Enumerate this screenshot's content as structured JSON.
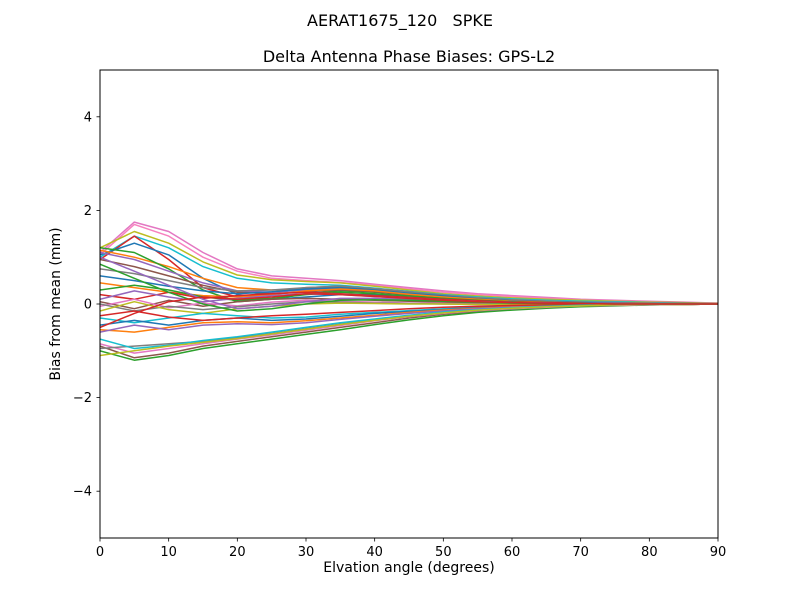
{
  "figure": {
    "background": "#ffffff"
  },
  "chart_data": {
    "type": "line",
    "suptitle": "AERAT1675_120   SPKE",
    "title": "Delta Antenna Phase Biases: GPS-L2",
    "xlabel": "Elvation angle (degrees)",
    "ylabel": "Bias from mean (mm)",
    "xlim": [
      0,
      90
    ],
    "ylim": [
      -5,
      5
    ],
    "xticks": [
      0,
      10,
      20,
      30,
      40,
      50,
      60,
      70,
      80,
      90
    ],
    "yticks": [
      -4,
      -2,
      0,
      2,
      4
    ],
    "grid": false,
    "legend": "none",
    "x": [
      0,
      5,
      10,
      15,
      20,
      25,
      30,
      35,
      40,
      45,
      50,
      55,
      60,
      65,
      70,
      75,
      80,
      85,
      90
    ],
    "series": [
      {
        "name": "line-01",
        "color": "#e377c2",
        "values": [
          1.1,
          1.75,
          1.55,
          1.1,
          0.75,
          0.6,
          0.55,
          0.5,
          0.42,
          0.35,
          0.28,
          0.22,
          0.18,
          0.14,
          0.1,
          0.08,
          0.06,
          0.04,
          0.02
        ]
      },
      {
        "name": "line-02",
        "color": "#f781bf",
        "values": [
          1.05,
          1.7,
          1.45,
          1.0,
          0.7,
          0.55,
          0.5,
          0.46,
          0.4,
          0.32,
          0.25,
          0.2,
          0.16,
          0.12,
          0.09,
          0.07,
          0.05,
          0.03,
          0.02
        ]
      },
      {
        "name": "line-03",
        "color": "#bcbd22",
        "values": [
          1.2,
          1.55,
          1.3,
          0.9,
          0.62,
          0.52,
          0.48,
          0.45,
          0.38,
          0.3,
          0.22,
          0.17,
          0.13,
          0.1,
          0.08,
          0.06,
          0.04,
          0.03,
          0.01
        ]
      },
      {
        "name": "line-04",
        "color": "#17becf",
        "values": [
          1.0,
          1.45,
          1.2,
          0.8,
          0.55,
          0.45,
          0.42,
          0.4,
          0.34,
          0.27,
          0.2,
          0.15,
          0.11,
          0.08,
          0.06,
          0.05,
          0.03,
          0.02,
          0.01
        ]
      },
      {
        "name": "line-05",
        "color": "#d62728",
        "values": [
          0.95,
          1.45,
          0.95,
          0.35,
          0.15,
          0.25,
          0.35,
          0.38,
          0.32,
          0.25,
          0.18,
          0.12,
          0.08,
          0.05,
          0.03,
          0.02,
          0.01,
          0.01,
          0.0
        ]
      },
      {
        "name": "line-06",
        "color": "#1f77b4",
        "values": [
          1.05,
          1.3,
          1.05,
          0.55,
          0.2,
          0.1,
          0.15,
          0.2,
          0.2,
          0.17,
          0.13,
          0.1,
          0.07,
          0.05,
          0.03,
          0.02,
          0.01,
          0.01,
          0.0
        ]
      },
      {
        "name": "line-07",
        "color": "#ff7f0e",
        "values": [
          1.15,
          1.0,
          0.8,
          0.55,
          0.35,
          0.3,
          0.32,
          0.35,
          0.3,
          0.24,
          0.18,
          0.13,
          0.09,
          0.06,
          0.04,
          0.03,
          0.02,
          0.01,
          0.01
        ]
      },
      {
        "name": "line-08",
        "color": "#2ca02c",
        "values": [
          1.2,
          1.1,
          0.75,
          0.3,
          0.05,
          0.1,
          0.22,
          0.28,
          0.25,
          0.2,
          0.14,
          0.09,
          0.06,
          0.04,
          0.02,
          0.01,
          0.01,
          0.0,
          0.0
        ]
      },
      {
        "name": "line-09",
        "color": "#9467bd",
        "values": [
          1.1,
          0.95,
          0.7,
          0.45,
          0.28,
          0.25,
          0.3,
          0.33,
          0.28,
          0.22,
          0.16,
          0.11,
          0.08,
          0.05,
          0.03,
          0.02,
          0.01,
          0.01,
          0.0
        ]
      },
      {
        "name": "line-10",
        "color": "#8c564b",
        "values": [
          0.95,
          0.8,
          0.6,
          0.4,
          0.25,
          0.22,
          0.26,
          0.3,
          0.26,
          0.2,
          0.15,
          0.1,
          0.07,
          0.05,
          0.03,
          0.02,
          0.01,
          0.01,
          0.0
        ]
      },
      {
        "name": "line-11",
        "color": "#7f7f7f",
        "values": [
          0.75,
          0.65,
          0.5,
          0.35,
          0.28,
          0.3,
          0.35,
          0.38,
          0.33,
          0.26,
          0.19,
          0.13,
          0.09,
          0.06,
          0.04,
          0.03,
          0.02,
          0.01,
          0.0
        ]
      },
      {
        "name": "line-12",
        "color": "#1f77b4",
        "values": [
          0.6,
          0.5,
          0.38,
          0.28,
          0.22,
          0.26,
          0.32,
          0.35,
          0.3,
          0.23,
          0.17,
          0.11,
          0.07,
          0.05,
          0.03,
          0.02,
          0.01,
          0.0,
          0.0
        ]
      },
      {
        "name": "line-13",
        "color": "#ff7f0e",
        "values": [
          0.45,
          0.35,
          0.25,
          0.18,
          0.15,
          0.2,
          0.28,
          0.32,
          0.28,
          0.21,
          0.15,
          0.1,
          0.06,
          0.04,
          0.02,
          0.01,
          0.01,
          0.0,
          0.0
        ]
      },
      {
        "name": "line-14",
        "color": "#2ca02c",
        "values": [
          0.3,
          0.4,
          0.3,
          0.15,
          0.08,
          0.12,
          0.2,
          0.25,
          0.22,
          0.17,
          0.12,
          0.08,
          0.05,
          0.03,
          0.02,
          0.01,
          0.0,
          0.0,
          0.0
        ]
      },
      {
        "name": "line-15",
        "color": "#d62728",
        "values": [
          0.2,
          0.1,
          0.25,
          0.12,
          0.18,
          0.22,
          0.25,
          0.22,
          0.18,
          0.14,
          0.1,
          0.07,
          0.04,
          0.03,
          0.02,
          0.01,
          0.0,
          0.0,
          0.0
        ]
      },
      {
        "name": "line-16",
        "color": "#9467bd",
        "values": [
          0.1,
          0.28,
          0.15,
          0.05,
          0.12,
          0.18,
          0.22,
          0.2,
          0.16,
          0.12,
          0.08,
          0.05,
          0.03,
          0.02,
          0.01,
          0.01,
          0.0,
          0.0,
          0.0
        ]
      },
      {
        "name": "line-17",
        "color": "#8c564b",
        "values": [
          0.05,
          -0.1,
          0.08,
          -0.05,
          0.05,
          0.1,
          0.12,
          0.1,
          0.08,
          0.06,
          0.04,
          0.02,
          0.01,
          0.01,
          0.0,
          0.0,
          0.0,
          0.0,
          0.0
        ]
      },
      {
        "name": "line-18",
        "color": "#e377c2",
        "values": [
          -0.05,
          0.1,
          -0.08,
          0.02,
          -0.04,
          0.04,
          0.08,
          0.06,
          0.04,
          0.02,
          0.01,
          0.0,
          0.0,
          0.0,
          0.0,
          0.0,
          0.0,
          0.0,
          0.0
        ]
      },
      {
        "name": "line-19",
        "color": "#7f7f7f",
        "values": [
          0.0,
          -0.15,
          -0.05,
          -0.12,
          -0.06,
          0.0,
          0.05,
          0.04,
          0.02,
          0.01,
          0.0,
          0.0,
          0.0,
          0.0,
          0.0,
          0.0,
          0.0,
          0.0,
          0.0
        ]
      },
      {
        "name": "line-20",
        "color": "#bcbd22",
        "values": [
          -0.15,
          0.05,
          -0.12,
          -0.2,
          -0.1,
          -0.05,
          0.0,
          0.02,
          0.01,
          0.0,
          0.0,
          -0.01,
          -0.01,
          0.0,
          0.0,
          0.0,
          0.0,
          0.0,
          0.0
        ]
      },
      {
        "name": "line-21",
        "color": "#17becf",
        "values": [
          -0.3,
          -0.4,
          -0.3,
          -0.2,
          -0.25,
          -0.3,
          -0.28,
          -0.22,
          -0.18,
          -0.14,
          -0.1,
          -0.07,
          -0.05,
          -0.03,
          -0.02,
          -0.01,
          -0.01,
          0.0,
          0.0
        ]
      },
      {
        "name": "line-22",
        "color": "#1f77b4",
        "values": [
          -0.45,
          -0.35,
          -0.45,
          -0.35,
          -0.3,
          -0.35,
          -0.32,
          -0.26,
          -0.2,
          -0.16,
          -0.12,
          -0.08,
          -0.06,
          -0.04,
          -0.02,
          -0.01,
          -0.01,
          0.0,
          0.0
        ]
      },
      {
        "name": "line-23",
        "color": "#ff7f0e",
        "values": [
          -0.55,
          -0.6,
          -0.5,
          -0.4,
          -0.38,
          -0.4,
          -0.36,
          -0.3,
          -0.24,
          -0.18,
          -0.13,
          -0.09,
          -0.06,
          -0.04,
          -0.03,
          -0.02,
          -0.01,
          -0.01,
          0.0
        ]
      },
      {
        "name": "line-24",
        "color": "#9467bd",
        "values": [
          -0.6,
          -0.45,
          -0.55,
          -0.45,
          -0.42,
          -0.44,
          -0.4,
          -0.33,
          -0.26,
          -0.2,
          -0.15,
          -0.1,
          -0.07,
          -0.05,
          -0.03,
          -0.02,
          -0.01,
          -0.01,
          0.0
        ]
      },
      {
        "name": "line-25",
        "color": "#d62728",
        "values": [
          -0.25,
          -0.15,
          -0.28,
          -0.35,
          -0.3,
          -0.25,
          -0.22,
          -0.18,
          -0.14,
          -0.1,
          -0.07,
          -0.05,
          -0.03,
          -0.02,
          -0.01,
          -0.01,
          0.0,
          0.0,
          0.0
        ]
      },
      {
        "name": "line-26",
        "color": "#8c564b",
        "values": [
          -0.9,
          -1.15,
          -1.05,
          -0.9,
          -0.8,
          -0.7,
          -0.6,
          -0.5,
          -0.4,
          -0.3,
          -0.22,
          -0.16,
          -0.11,
          -0.08,
          -0.05,
          -0.03,
          -0.02,
          -0.01,
          0.0
        ]
      },
      {
        "name": "line-27",
        "color": "#2ca02c",
        "values": [
          -1.0,
          -1.2,
          -1.1,
          -0.95,
          -0.85,
          -0.75,
          -0.65,
          -0.55,
          -0.44,
          -0.34,
          -0.25,
          -0.18,
          -0.13,
          -0.09,
          -0.06,
          -0.04,
          -0.02,
          -0.01,
          0.0
        ]
      },
      {
        "name": "line-28",
        "color": "#e377c2",
        "values": [
          -0.85,
          -1.05,
          -0.95,
          -0.85,
          -0.75,
          -0.66,
          -0.56,
          -0.46,
          -0.36,
          -0.27,
          -0.2,
          -0.14,
          -0.1,
          -0.07,
          -0.04,
          -0.03,
          -0.02,
          -0.01,
          0.0
        ]
      },
      {
        "name": "line-29",
        "color": "#7f7f7f",
        "values": [
          -0.95,
          -0.9,
          -0.85,
          -0.8,
          -0.72,
          -0.63,
          -0.53,
          -0.43,
          -0.34,
          -0.26,
          -0.19,
          -0.13,
          -0.09,
          -0.06,
          -0.04,
          -0.02,
          -0.01,
          -0.01,
          0.0
        ]
      },
      {
        "name": "line-30",
        "color": "#17becf",
        "values": [
          -0.75,
          -0.95,
          -0.88,
          -0.78,
          -0.7,
          -0.6,
          -0.5,
          -0.4,
          -0.32,
          -0.24,
          -0.17,
          -0.12,
          -0.08,
          -0.05,
          -0.03,
          -0.02,
          -0.01,
          0.0,
          0.0
        ]
      },
      {
        "name": "line-31",
        "color": "#bcbd22",
        "values": [
          -1.1,
          -1.0,
          -0.9,
          -0.82,
          -0.74,
          -0.64,
          -0.54,
          -0.44,
          -0.35,
          -0.26,
          -0.19,
          -0.13,
          -0.09,
          -0.06,
          -0.04,
          -0.02,
          -0.01,
          -0.01,
          0.0
        ]
      },
      {
        "name": "line-32",
        "color": "#9467bd",
        "values": [
          1.0,
          0.7,
          0.4,
          0.1,
          -0.1,
          -0.05,
          0.05,
          0.12,
          0.12,
          0.1,
          0.07,
          0.05,
          0.03,
          0.02,
          0.01,
          0.01,
          0.0,
          0.0,
          0.0
        ]
      },
      {
        "name": "line-33",
        "color": "#2ca02c",
        "values": [
          0.85,
          0.55,
          0.25,
          0.0,
          -0.15,
          -0.1,
          0.0,
          0.08,
          0.09,
          0.08,
          0.06,
          0.04,
          0.02,
          0.01,
          0.01,
          0.0,
          0.0,
          0.0,
          0.0
        ]
      },
      {
        "name": "line-34",
        "color": "#d62728",
        "values": [
          -0.5,
          -0.2,
          0.05,
          0.15,
          0.1,
          0.15,
          0.22,
          0.2,
          0.16,
          0.12,
          0.08,
          0.05,
          0.03,
          0.02,
          0.01,
          0.0,
          0.0,
          0.0,
          0.0
        ]
      }
    ]
  }
}
